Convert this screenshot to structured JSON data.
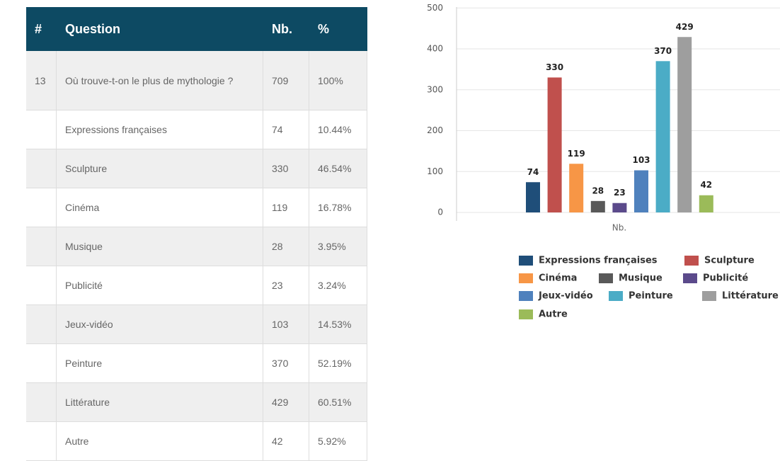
{
  "table": {
    "header": [
      "#",
      "Question",
      "Nb.",
      "%"
    ],
    "rows": [
      {
        "number": "13",
        "question": "Où trouve-t-on le plus de mythologie ?",
        "count": 709,
        "percent": "100%"
      },
      {
        "question": "Expressions françaises",
        "count": 74,
        "percent": "10.44%"
      },
      {
        "question": "Sculpture",
        "count": 330,
        "percent": "46.54%"
      },
      {
        "question": "Cinéma",
        "count": 119,
        "percent": "16.78%"
      },
      {
        "question": "Musique",
        "count": 28,
        "percent": "3.95%"
      },
      {
        "question": "Publicité",
        "count": 23,
        "percent": "3.24%"
      },
      {
        "question": "Jeux-vidéo",
        "count": 103,
        "percent": "14.53%"
      },
      {
        "question": "Peinture",
        "count": 370,
        "percent": "52.19%"
      },
      {
        "question": "Littérature",
        "count": 429,
        "percent": "60.51%"
      },
      {
        "question": "Autre",
        "count": 42,
        "percent": "5.92%"
      }
    ]
  },
  "chart_data": {
    "type": "bar",
    "categories": [
      "Nb."
    ],
    "series": [
      {
        "name": "Expressions françaises",
        "color": "#1f4e79",
        "values": [
          74
        ]
      },
      {
        "name": "Sculpture",
        "color": "#c0504d",
        "values": [
          330
        ]
      },
      {
        "name": "Cinéma",
        "color": "#f79646",
        "values": [
          119
        ]
      },
      {
        "name": "Musique",
        "color": "#595959",
        "values": [
          28
        ]
      },
      {
        "name": "Publicité",
        "color": "#5b4a8b",
        "values": [
          23
        ]
      },
      {
        "name": "Jeux-vidéo",
        "color": "#4f81bd",
        "values": [
          103
        ]
      },
      {
        "name": "Peinture",
        "color": "#4bacc6",
        "values": [
          370
        ]
      },
      {
        "name": "Littérature",
        "color": "#9e9e9e",
        "values": [
          429
        ]
      },
      {
        "name": "Autre",
        "color": "#9bbb59",
        "values": [
          42
        ]
      }
    ],
    "ylim": [
      0,
      500
    ],
    "yticks": [
      0,
      100,
      200,
      300,
      400,
      500
    ],
    "grid": true
  }
}
